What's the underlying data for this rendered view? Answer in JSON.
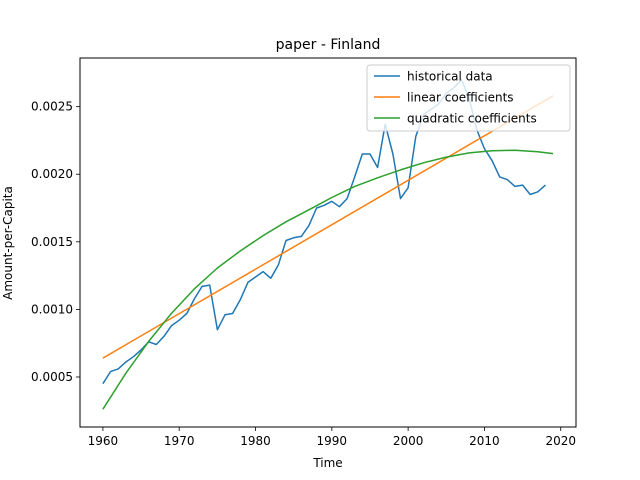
{
  "chart_data": {
    "type": "line",
    "title": "paper - Finland",
    "xlabel": "Time",
    "ylabel": "Amount-per-Capita",
    "xlim": [
      1957,
      2022
    ],
    "ylim": [
      0.00013,
      0.00286
    ],
    "x_ticks": [
      1960,
      1970,
      1980,
      1990,
      2000,
      2010,
      2020
    ],
    "x_tick_labels": [
      "1960",
      "1970",
      "1980",
      "1990",
      "2000",
      "2010",
      "2020"
    ],
    "y_ticks": [
      0.0005,
      0.001,
      0.0015,
      0.002,
      0.0025
    ],
    "y_tick_labels": [
      "0.0005",
      "0.0010",
      "0.0015",
      "0.0020",
      "0.0025"
    ],
    "legend_position": "top-right",
    "grid": false,
    "series": [
      {
        "name": "historical data",
        "color": "#1f77b4",
        "x": [
          1960,
          1961,
          1962,
          1963,
          1964,
          1965,
          1966,
          1967,
          1968,
          1969,
          1970,
          1971,
          1972,
          1973,
          1974,
          1975,
          1976,
          1977,
          1978,
          1979,
          1980,
          1981,
          1982,
          1983,
          1984,
          1985,
          1986,
          1987,
          1988,
          1989,
          1990,
          1991,
          1992,
          1993,
          1994,
          1995,
          1996,
          1997,
          1998,
          1999,
          2000,
          2001,
          2002,
          2003,
          2004,
          2005,
          2006,
          2007,
          2008,
          2009,
          2010,
          2011,
          2012,
          2013,
          2014,
          2015,
          2016,
          2017,
          2018
        ],
        "values": [
          0.00045,
          0.00054,
          0.00056,
          0.00061,
          0.00065,
          0.0007,
          0.00076,
          0.00074,
          0.0008,
          0.00088,
          0.00092,
          0.00097,
          0.00108,
          0.00117,
          0.00118,
          0.00085,
          0.00096,
          0.00097,
          0.00107,
          0.0012,
          0.00124,
          0.00128,
          0.00123,
          0.00133,
          0.00151,
          0.00153,
          0.00154,
          0.00162,
          0.00175,
          0.00177,
          0.0018,
          0.00176,
          0.00182,
          0.00198,
          0.00215,
          0.00215,
          0.00205,
          0.00237,
          0.00215,
          0.00182,
          0.0019,
          0.00228,
          0.00244,
          0.00248,
          0.00252,
          0.0026,
          0.00264,
          0.0027,
          0.00256,
          0.00233,
          0.00219,
          0.0021,
          0.00198,
          0.00196,
          0.00191,
          0.00192,
          0.00185,
          0.00187,
          0.00192
        ]
      },
      {
        "name": "linear coefficients",
        "color": "#ff7f0e",
        "x": [
          1960,
          2019
        ],
        "values": [
          0.00064,
          0.00258
        ]
      },
      {
        "name": "quadratic coefficients",
        "color": "#2ca02c",
        "x": [
          1960,
          1963,
          1966,
          1969,
          1972,
          1975,
          1978,
          1981,
          1984,
          1987,
          1990,
          1993,
          1996,
          1999,
          2002,
          2005,
          2008,
          2011,
          2014,
          2017,
          2019
        ],
        "values": [
          0.000262,
          0.000527,
          0.000763,
          0.000972,
          0.001153,
          0.001306,
          0.001432,
          0.001546,
          0.001648,
          0.001737,
          0.001828,
          0.00191,
          0.001974,
          0.002032,
          0.002085,
          0.002127,
          0.002158,
          0.002174,
          0.002177,
          0.002166,
          0.002153
        ]
      }
    ]
  }
}
